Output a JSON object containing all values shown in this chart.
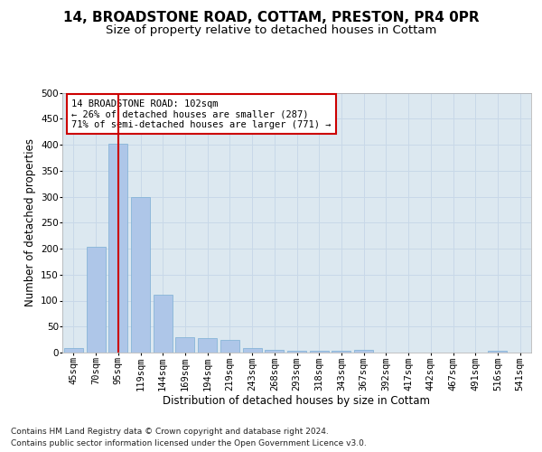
{
  "title1": "14, BROADSTONE ROAD, COTTAM, PRESTON, PR4 0PR",
  "title2": "Size of property relative to detached houses in Cottam",
  "xlabel": "Distribution of detached houses by size in Cottam",
  "ylabel": "Number of detached properties",
  "categories": [
    "45sqm",
    "70sqm",
    "95sqm",
    "119sqm",
    "144sqm",
    "169sqm",
    "194sqm",
    "219sqm",
    "243sqm",
    "268sqm",
    "293sqm",
    "318sqm",
    "343sqm",
    "367sqm",
    "392sqm",
    "417sqm",
    "442sqm",
    "467sqm",
    "491sqm",
    "516sqm",
    "541sqm"
  ],
  "values": [
    8,
    204,
    401,
    300,
    112,
    30,
    28,
    25,
    8,
    6,
    3,
    3,
    3,
    5,
    0,
    0,
    0,
    0,
    0,
    4,
    0
  ],
  "bar_color": "#aec6e8",
  "bar_edge_color": "#7bafd4",
  "red_line_index": 2,
  "red_line_color": "#cc0000",
  "annotation_text": "14 BROADSTONE ROAD: 102sqm\n← 26% of detached houses are smaller (287)\n71% of semi-detached houses are larger (771) →",
  "annotation_box_color": "#ffffff",
  "annotation_box_edge_color": "#cc0000",
  "ylim": [
    0,
    500
  ],
  "yticks": [
    0,
    50,
    100,
    150,
    200,
    250,
    300,
    350,
    400,
    450,
    500
  ],
  "grid_color": "#c8d8e8",
  "background_color": "#dce8f0",
  "footer_line1": "Contains HM Land Registry data © Crown copyright and database right 2024.",
  "footer_line2": "Contains public sector information licensed under the Open Government Licence v3.0.",
  "title1_fontsize": 11,
  "title2_fontsize": 9.5,
  "tick_fontsize": 7.5,
  "axis_label_fontsize": 8.5,
  "annotation_fontsize": 7.5,
  "footer_fontsize": 6.5
}
